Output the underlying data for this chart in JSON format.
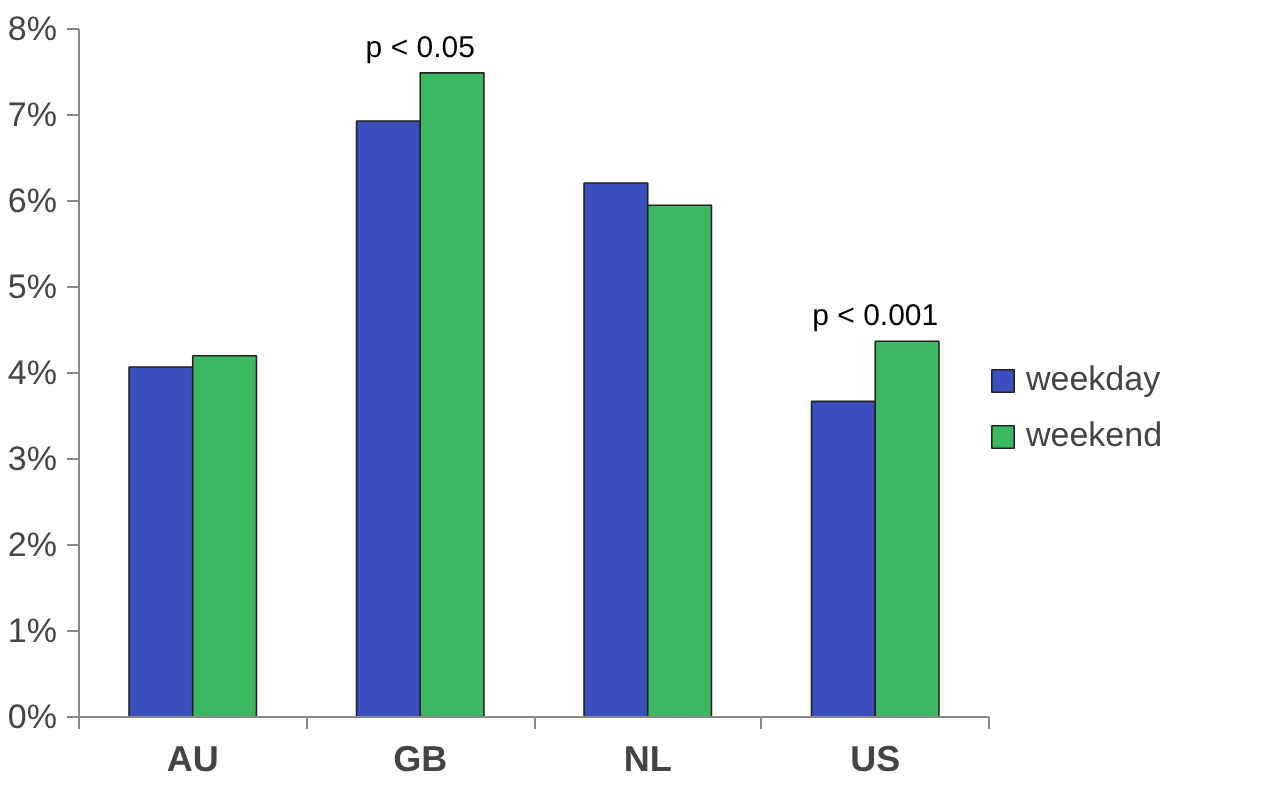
{
  "chart_data": {
    "type": "bar",
    "categories": [
      "AU",
      "GB",
      "NL",
      "US"
    ],
    "series": [
      {
        "name": "weekday",
        "color": "#3b50be",
        "values": [
          4.07,
          6.93,
          6.21,
          3.67
        ]
      },
      {
        "name": "weekend",
        "color": "#3cb862",
        "values": [
          4.2,
          7.49,
          5.95,
          4.37
        ]
      }
    ],
    "ylim": [
      0,
      8
    ],
    "yticks": [
      {
        "value": 0,
        "label": "0%"
      },
      {
        "value": 1,
        "label": "1%"
      },
      {
        "value": 2,
        "label": "2%"
      },
      {
        "value": 3,
        "label": "3%"
      },
      {
        "value": 4,
        "label": "4%"
      },
      {
        "value": 5,
        "label": "5%"
      },
      {
        "value": 6,
        "label": "6%"
      },
      {
        "value": 7,
        "label": "7%"
      },
      {
        "value": 8,
        "label": "8%"
      }
    ],
    "annotations": [
      {
        "text": "p < 0.05",
        "x": "GB",
        "y": 7.49
      },
      {
        "text": "p < 0.001",
        "x": "US",
        "y": 4.37
      }
    ],
    "legend": "right",
    "grid": false
  }
}
